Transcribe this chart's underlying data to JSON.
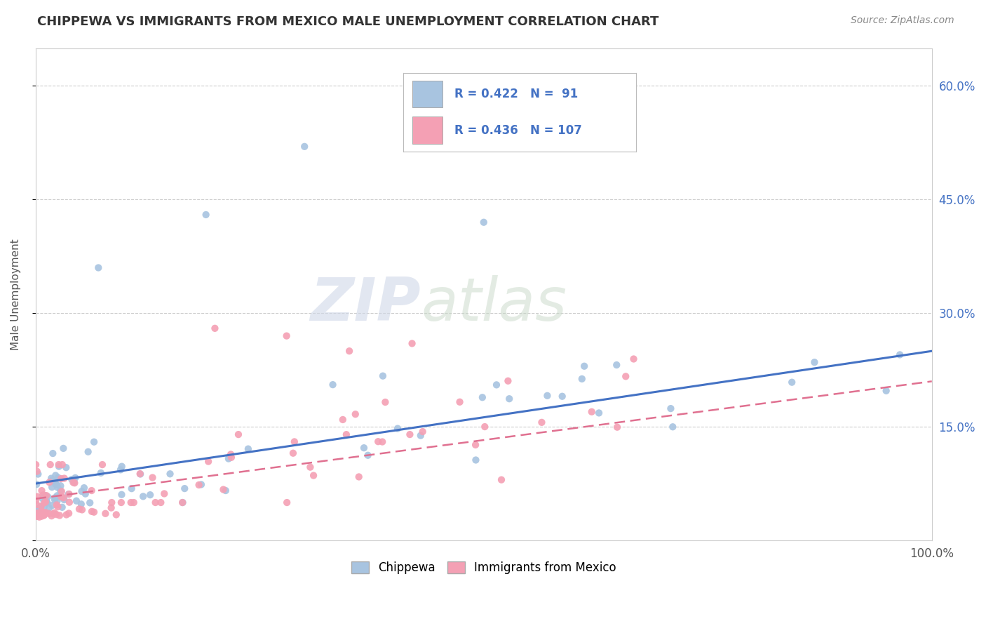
{
  "title": "CHIPPEWA VS IMMIGRANTS FROM MEXICO MALE UNEMPLOYMENT CORRELATION CHART",
  "source": "Source: ZipAtlas.com",
  "ylabel": "Male Unemployment",
  "y_tick_vals": [
    0.0,
    0.15,
    0.3,
    0.45,
    0.6
  ],
  "y_tick_labels": [
    "",
    "15.0%",
    "30.0%",
    "45.0%",
    "60.0%"
  ],
  "x_tick_vals": [
    0.0,
    1.0
  ],
  "x_tick_labels": [
    "0.0%",
    "100.0%"
  ],
  "chippewa_R": 0.422,
  "chippewa_N": 91,
  "mexico_R": 0.436,
  "mexico_N": 107,
  "chippewa_color": "#a8c4e0",
  "mexico_color": "#f4a0b4",
  "chippewa_line_color": "#4472c4",
  "mexico_line_color": "#e07090",
  "background_color": "#ffffff",
  "watermark_zip": "ZIP",
  "watermark_atlas": "atlas",
  "legend_label_chippewa": "Chippewa",
  "legend_label_mexico": "Immigrants from Mexico",
  "xlim": [
    0.0,
    1.0
  ],
  "ylim": [
    0.0,
    0.65
  ],
  "title_fontsize": 13,
  "source_fontsize": 10,
  "legend_text_color": "#4472c4",
  "legend_label_color": "#333333"
}
